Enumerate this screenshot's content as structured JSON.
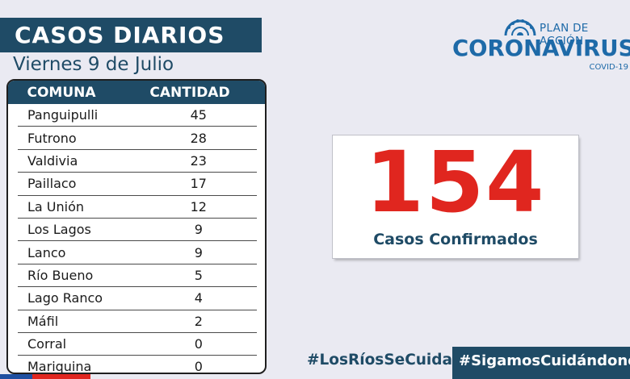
{
  "header": {
    "title": "CASOS DIARIOS",
    "date": "Viernes 9 de Julio"
  },
  "table": {
    "columns": [
      "COMUNA",
      "CANTIDAD"
    ],
    "rows": [
      {
        "comuna": "Panguipulli",
        "cantidad": "45"
      },
      {
        "comuna": "Futrono",
        "cantidad": "28"
      },
      {
        "comuna": "Valdivia",
        "cantidad": "23"
      },
      {
        "comuna": "Paillaco",
        "cantidad": "17"
      },
      {
        "comuna": "La Unión",
        "cantidad": "12"
      },
      {
        "comuna": "Los Lagos",
        "cantidad": "9"
      },
      {
        "comuna": "Lanco",
        "cantidad": "9"
      },
      {
        "comuna": "Río Bueno",
        "cantidad": "5"
      },
      {
        "comuna": "Lago Ranco",
        "cantidad": "4"
      },
      {
        "comuna": "Máfil",
        "cantidad": "2"
      },
      {
        "comuna": "Corral",
        "cantidad": "0"
      },
      {
        "comuna": "Mariquina",
        "cantidad": "0"
      }
    ]
  },
  "logo": {
    "plan": "PLAN DE ACCIÓN",
    "main": "CORONAVIRUS",
    "sub": "COVID-19",
    "icon": "sun-emblem-icon"
  },
  "summary": {
    "total": "154",
    "label": "Casos Confirmados"
  },
  "footer": {
    "hashtag_1": "#LosRíosSeCuida",
    "hashtag_2": "#SigamosCuidándonos"
  },
  "colors": {
    "navy": "#1f4b66",
    "accent_red": "#e0261f",
    "logo_blue": "#1e6aa8",
    "background": "#eaeaf2"
  }
}
